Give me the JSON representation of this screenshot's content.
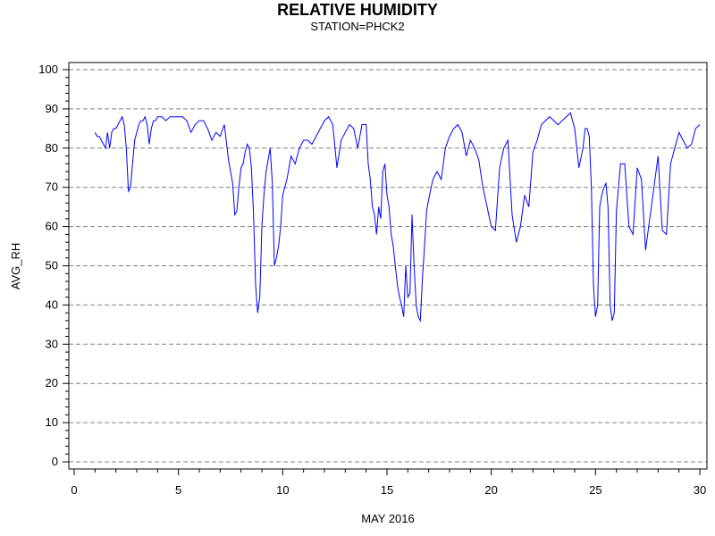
{
  "header": {
    "title": "RELATIVE HUMIDITY",
    "subtitle": "STATION=PHCK2"
  },
  "chart_data": {
    "type": "line",
    "title": "RELATIVE HUMIDITY",
    "subtitle": "STATION=PHCK2",
    "xlabel": "MAY 2016",
    "ylabel": "AVG_RH",
    "xlim": [
      0,
      30
    ],
    "ylim": [
      0,
      100
    ],
    "x_ticks": [
      0,
      5,
      10,
      15,
      20,
      25,
      30
    ],
    "y_ticks": [
      0,
      10,
      20,
      30,
      40,
      50,
      60,
      70,
      80,
      90,
      100
    ],
    "grid": "horizontal-dashed",
    "line_color": "#0000ff",
    "series": [
      {
        "x": [
          1.0,
          1.1,
          1.2,
          1.3,
          1.4,
          1.5,
          1.6,
          1.7,
          1.8,
          1.9,
          2.0,
          2.1,
          2.2,
          2.3,
          2.4,
          2.5,
          2.6,
          2.7,
          2.8,
          2.9,
          3.0,
          3.1,
          3.2,
          3.3,
          3.4,
          3.5,
          3.6,
          3.7,
          3.8,
          3.9,
          4.0,
          4.2,
          4.4,
          4.6,
          4.8,
          5.0,
          5.2,
          5.4,
          5.6,
          5.8,
          6.0,
          6.2,
          6.4,
          6.6,
          6.8,
          7.0,
          7.2,
          7.4,
          7.6,
          7.7,
          7.8,
          7.9,
          8.0,
          8.1,
          8.2,
          8.3,
          8.4,
          8.5,
          8.6,
          8.7,
          8.8,
          8.9,
          9.0,
          9.1,
          9.2,
          9.3,
          9.4,
          9.5,
          9.6,
          9.7,
          9.8,
          9.9,
          10.0,
          10.2,
          10.4,
          10.6,
          10.8,
          11.0,
          11.2,
          11.4,
          11.6,
          11.8,
          12.0,
          12.2,
          12.4,
          12.6,
          12.8,
          13.0,
          13.2,
          13.4,
          13.6,
          13.8,
          14.0,
          14.1,
          14.2,
          14.3,
          14.4,
          14.5,
          14.6,
          14.7,
          14.8,
          14.9,
          15.0,
          15.1,
          15.2,
          15.3,
          15.4,
          15.5,
          15.6,
          15.7,
          15.8,
          15.9,
          16.0,
          16.1,
          16.2,
          16.3,
          16.4,
          16.5,
          16.6,
          16.7,
          16.8,
          16.9,
          17.0,
          17.2,
          17.4,
          17.6,
          17.8,
          18.0,
          18.2,
          18.4,
          18.6,
          18.8,
          19.0,
          19.2,
          19.4,
          19.6,
          19.8,
          20.0,
          20.2,
          20.4,
          20.6,
          20.8,
          21.0,
          21.2,
          21.4,
          21.6,
          21.8,
          22.0,
          22.2,
          22.4,
          22.6,
          22.8,
          23.0,
          23.2,
          23.4,
          23.6,
          23.8,
          24.0,
          24.2,
          24.4,
          24.5,
          24.6,
          24.7,
          24.8,
          24.9,
          25.0,
          25.1,
          25.2,
          25.3,
          25.4,
          25.5,
          25.6,
          25.7,
          25.8,
          25.9,
          26.0,
          26.2,
          26.4,
          26.6,
          26.8,
          27.0,
          27.2,
          27.4,
          27.6,
          27.8,
          28.0,
          28.2,
          28.4,
          28.6,
          28.8,
          29.0,
          29.2,
          29.4,
          29.6,
          29.8,
          30.0
        ],
        "y": [
          84,
          83,
          83,
          82,
          81,
          80,
          84,
          80,
          84,
          85,
          85,
          86,
          87,
          88,
          86,
          80,
          69,
          70,
          76,
          82,
          84,
          86,
          87,
          87,
          88,
          86,
          81,
          85,
          87,
          87,
          88,
          88,
          87,
          88,
          88,
          88,
          88,
          87,
          84,
          86,
          87,
          87,
          85,
          82,
          84,
          83,
          86,
          77,
          71,
          63,
          64,
          70,
          75,
          76,
          79,
          81,
          80,
          75,
          63,
          45,
          38,
          42,
          60,
          68,
          74,
          77,
          80,
          71,
          50,
          52,
          55,
          60,
          68,
          72,
          78,
          76,
          80,
          82,
          82,
          81,
          83,
          85,
          87,
          88,
          86,
          75,
          82,
          84,
          86,
          85,
          80,
          86,
          86,
          76,
          72,
          65,
          63,
          58,
          65,
          62,
          74,
          76,
          68,
          65,
          58,
          55,
          50,
          45,
          42,
          40,
          37,
          50,
          42,
          43,
          63,
          50,
          40,
          37,
          36,
          47,
          55,
          64,
          67,
          72,
          74,
          72,
          80,
          83,
          85,
          86,
          84,
          78,
          82,
          80,
          77,
          70,
          65,
          60,
          59,
          75,
          80,
          82,
          63,
          56,
          60,
          68,
          65,
          79,
          82,
          86,
          87,
          88,
          87,
          86,
          87,
          88,
          89,
          85,
          75,
          80,
          85,
          85,
          83,
          70,
          45,
          37,
          40,
          65,
          68,
          70,
          71,
          65,
          40,
          36,
          38,
          64,
          76,
          76,
          60,
          58,
          75,
          72,
          54,
          62,
          70,
          78,
          59,
          58,
          76,
          80,
          84,
          82,
          80,
          81,
          85,
          86
        ]
      }
    ]
  }
}
